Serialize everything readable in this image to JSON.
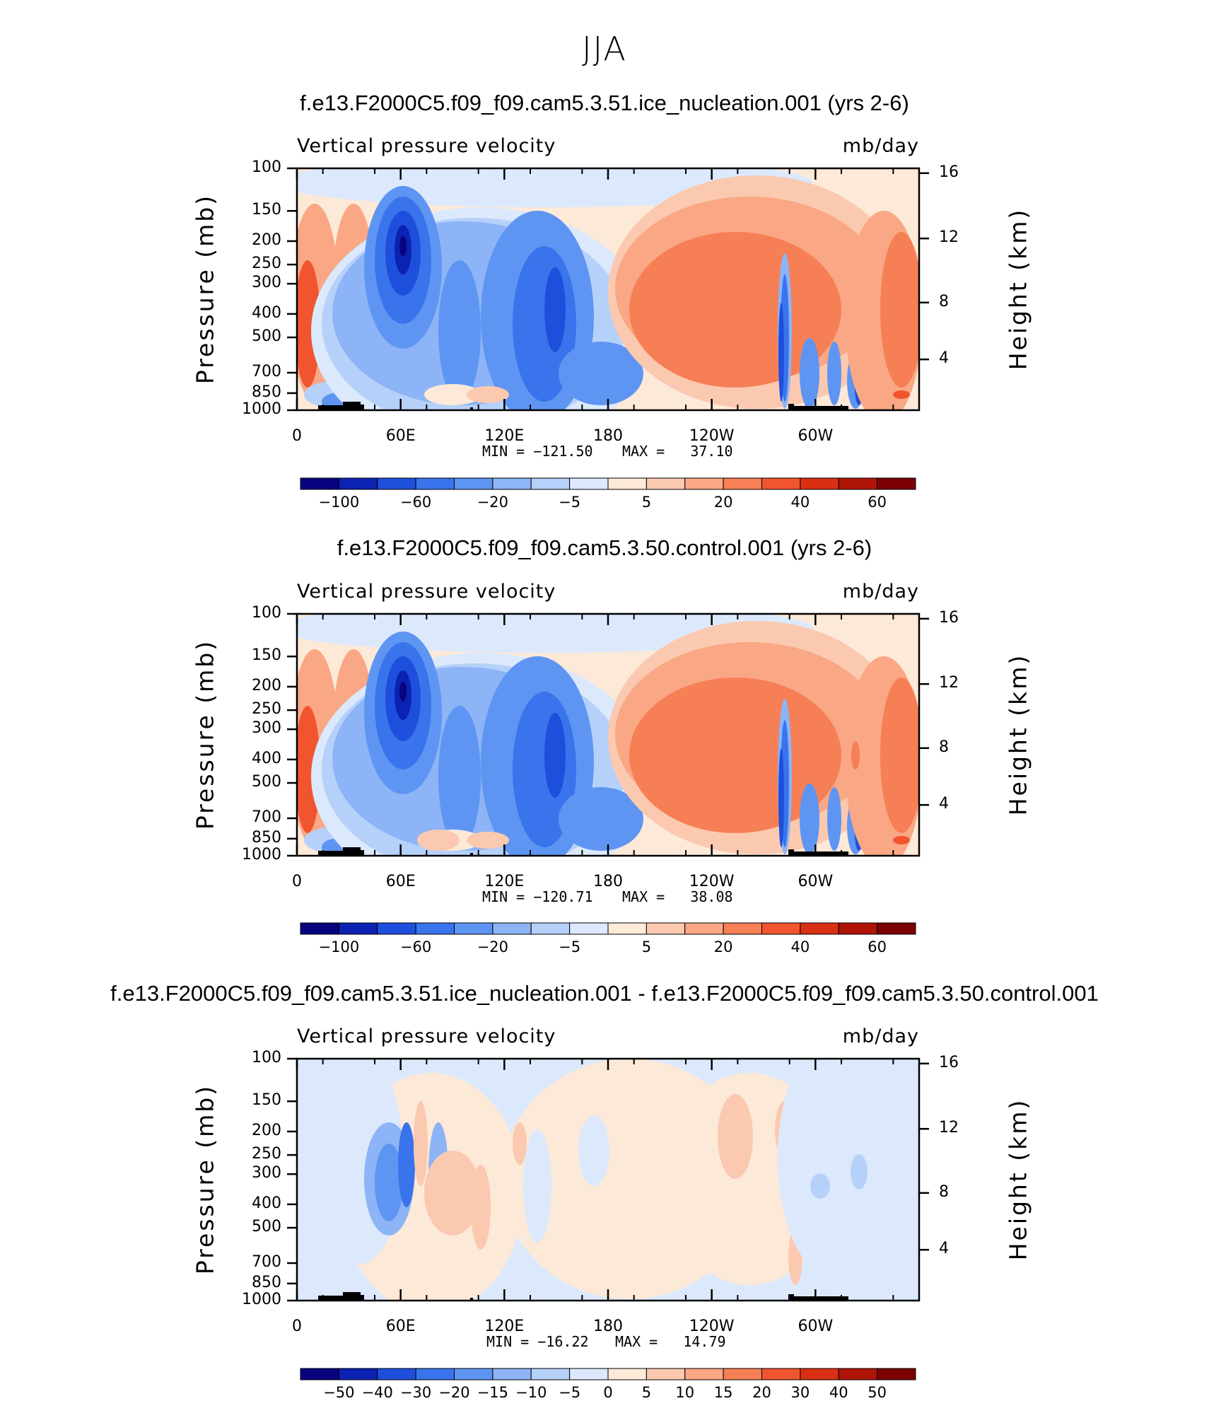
{
  "figure_title": "JJA",
  "chart_data": [
    {
      "type": "heatmap",
      "title": "f.e13.F2000C5.f09_f09.cam5.3.51.ice_nucleation.001 (yrs 2-6)",
      "variable": "Vertical pressure velocity",
      "units": "mb/day",
      "ylabel": "Pressure (mb)",
      "y2label": "Height (km)",
      "yticks": [
        "100",
        "150",
        "200",
        "250",
        "300",
        "400",
        "500",
        "700",
        "850",
        "1000"
      ],
      "y2ticks": [
        "16",
        "12",
        "8",
        "4"
      ],
      "xticks": [
        "0",
        "60E",
        "120E",
        "180",
        "120W",
        "60W"
      ],
      "min_label": "MIN = −121.50",
      "max_label": "MAX =   37.10",
      "min": -121.5,
      "max": 37.1,
      "colorbar_levels": [
        "−100",
        "−60",
        "−20",
        "−5",
        "5",
        "20",
        "40",
        "60"
      ]
    },
    {
      "type": "heatmap",
      "title": "f.e13.F2000C5.f09_f09.cam5.3.50.control.001 (yrs 2-6)",
      "variable": "Vertical pressure velocity",
      "units": "mb/day",
      "ylabel": "Pressure (mb)",
      "y2label": "Height (km)",
      "yticks": [
        "100",
        "150",
        "200",
        "250",
        "300",
        "400",
        "500",
        "700",
        "850",
        "1000"
      ],
      "y2ticks": [
        "16",
        "12",
        "8",
        "4"
      ],
      "xticks": [
        "0",
        "60E",
        "120E",
        "180",
        "120W",
        "60W"
      ],
      "min_label": "MIN = −120.71",
      "max_label": "MAX =   38.08",
      "min": -120.71,
      "max": 38.08,
      "colorbar_levels": [
        "−100",
        "−60",
        "−20",
        "−5",
        "5",
        "20",
        "40",
        "60"
      ]
    },
    {
      "type": "heatmap",
      "title": "f.e13.F2000C5.f09_f09.cam5.3.51.ice_nucleation.001 - f.e13.F2000C5.f09_f09.cam5.3.50.control.001",
      "variable": "Vertical pressure velocity",
      "units": "mb/day",
      "ylabel": "Pressure (mb)",
      "y2label": "Height (km)",
      "yticks": [
        "100",
        "150",
        "200",
        "250",
        "300",
        "400",
        "500",
        "700",
        "850",
        "1000"
      ],
      "y2ticks": [
        "16",
        "12",
        "8",
        "4"
      ],
      "xticks": [
        "0",
        "60E",
        "120E",
        "180",
        "120W",
        "60W"
      ],
      "min_label": "MIN = −16.22",
      "max_label": "MAX =   14.79",
      "min": -16.22,
      "max": 14.79,
      "colorbar_levels": [
        "−50",
        "−40",
        "−30",
        "−20",
        "−15",
        "−10",
        "−5",
        "0",
        "5",
        "10",
        "15",
        "20",
        "30",
        "40",
        "50"
      ]
    }
  ],
  "colors": {
    "colorbar_16": [
      "#08037f",
      "#0b22b2",
      "#1e4fdc",
      "#3a74ec",
      "#5f95f2",
      "#8cb4f6",
      "#b6d1f9",
      "#dce9fc",
      "#fde9d8",
      "#fbc9b0",
      "#f9a784",
      "#f67f55",
      "#f05530",
      "#d93014",
      "#b01406",
      "#7c0203"
    ],
    "colorbar_diff": [
      "#08037f",
      "#0b22b2",
      "#1e4fdc",
      "#3a74ec",
      "#5f95f2",
      "#8cb4f6",
      "#b6d1f9",
      "#dce9fc",
      "#fde9d8",
      "#fbc9b0",
      "#f9a784",
      "#f67f55",
      "#f05530",
      "#d93014",
      "#b01406",
      "#7c0203"
    ]
  }
}
